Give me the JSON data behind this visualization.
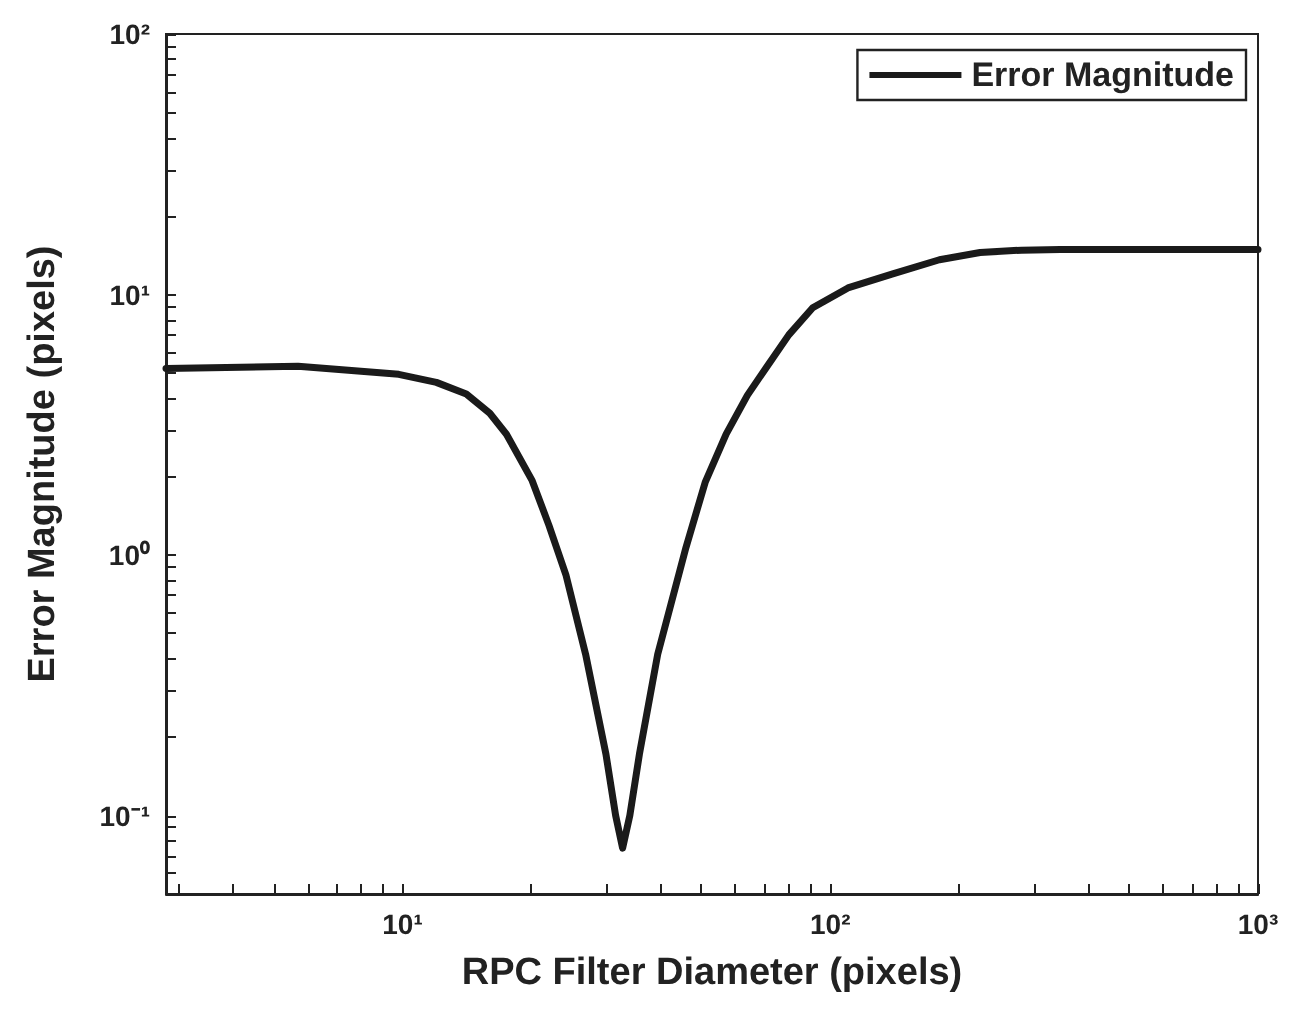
{
  "chart_data": {
    "type": "line",
    "xlabel": "RPC Filter Diameter (pixels)",
    "ylabel": "Error Magnitude (pixels)",
    "log": "xy",
    "xlim": [
      2.8,
      1000
    ],
    "xticks": [
      {
        "value": 10,
        "label": "10¹"
      },
      {
        "value": 100,
        "label": "10²"
      },
      {
        "value": 1000,
        "label": "10³"
      }
    ],
    "ylim": [
      0.05,
      100
    ],
    "yticks": [
      {
        "value": 0.1,
        "label": "10⁻¹"
      },
      {
        "value": 1,
        "label": "10⁰"
      },
      {
        "value": 10,
        "label": "10¹"
      },
      {
        "value": 100,
        "label": "10²"
      }
    ],
    "x": [
      2.8,
      5.7,
      9.8,
      12,
      14.1,
      16,
      17.5,
      20.1,
      22,
      24.1,
      26.8,
      29.9,
      31.5,
      32.7,
      34,
      35.8,
      39.5,
      46,
      51,
      57.1,
      64,
      70.9,
      80,
      91,
      110,
      140,
      180,
      224,
      280,
      345,
      1000
    ],
    "series": [
      {
        "name": "Error Magnitude",
        "color": "#1a1a1a",
        "values": [
          5.2,
          5.3,
          4.94,
          4.6,
          4.15,
          3.5,
          2.91,
          1.93,
          1.3,
          0.84,
          0.416,
          0.172,
          0.1,
          0.075,
          0.1,
          0.172,
          0.416,
          1.07,
          1.9,
          2.91,
          4.1,
          5.25,
          7.0,
          8.9,
          10.6,
          12.0,
          13.6,
          14.5,
          14.8,
          14.9,
          14.9
        ]
      }
    ],
    "legend": "top right",
    "grid": false,
    "marker": "none",
    "line_style": "solid"
  }
}
